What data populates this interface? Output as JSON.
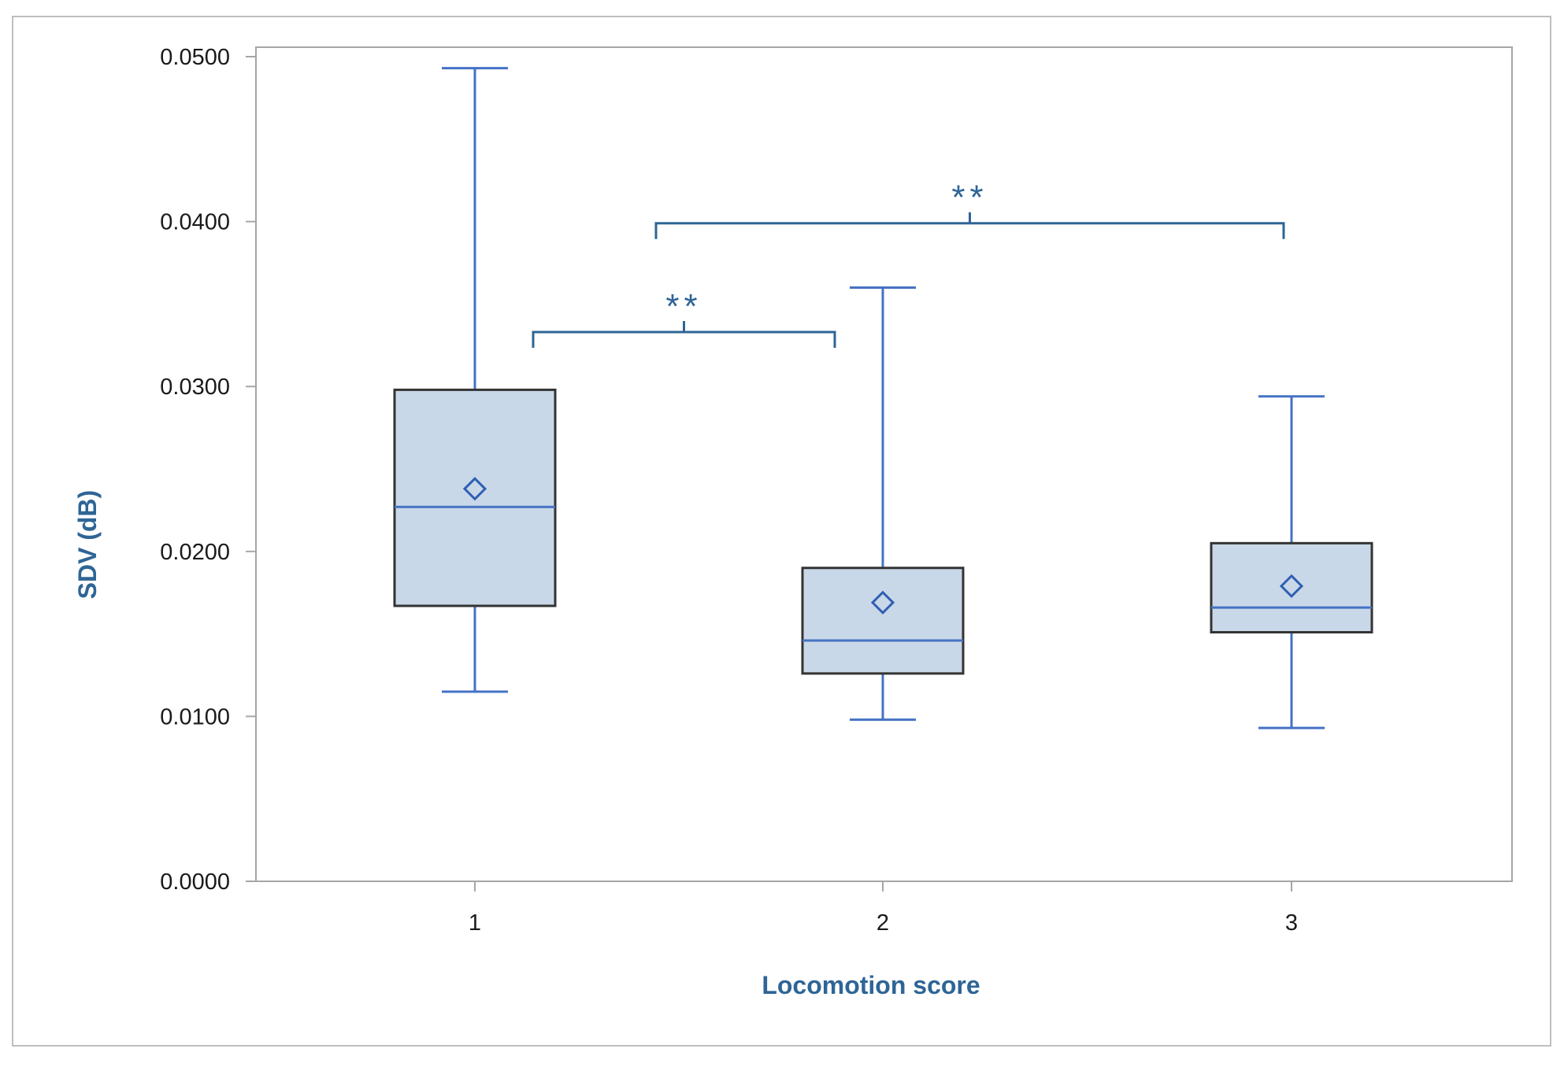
{
  "chart_data": {
    "type": "box",
    "xlabel": "Locomotion score",
    "ylabel": "SDV (dB)",
    "ylim": [
      0,
      0.05
    ],
    "yticks": [
      "0.0000",
      "0.0100",
      "0.0200",
      "0.0300",
      "0.0400",
      "0.0500"
    ],
    "ytick_values": [
      0,
      0.01,
      0.02,
      0.03,
      0.04,
      0.05
    ],
    "categories": [
      "1",
      "2",
      "3"
    ],
    "boxes": [
      {
        "category": "1",
        "whisker_low": 0.0115,
        "q1": 0.0167,
        "median": 0.0227,
        "q3": 0.0298,
        "whisker_high": 0.0493,
        "mean": 0.0238
      },
      {
        "category": "2",
        "whisker_low": 0.0098,
        "q1": 0.0126,
        "median": 0.0146,
        "q3": 0.019,
        "whisker_high": 0.036,
        "mean": 0.0169
      },
      {
        "category": "3",
        "whisker_low": 0.0093,
        "q1": 0.0151,
        "median": 0.0166,
        "q3": 0.0205,
        "whisker_high": 0.0294,
        "mean": 0.0179
      }
    ],
    "significance": [
      {
        "from": "1",
        "to": "2",
        "y": 0.0333,
        "label": "**"
      },
      {
        "from": "1",
        "to": "3",
        "y": 0.0399,
        "label": "**"
      }
    ],
    "colors": {
      "box_fill": "#c9d8e8",
      "box_edge": "#333333",
      "whisker": "#4472c4",
      "median": "#4472c4",
      "mean_marker": "#2f5fb3",
      "bracket": "#2e6596",
      "axis": "#a6a6a6"
    }
  }
}
